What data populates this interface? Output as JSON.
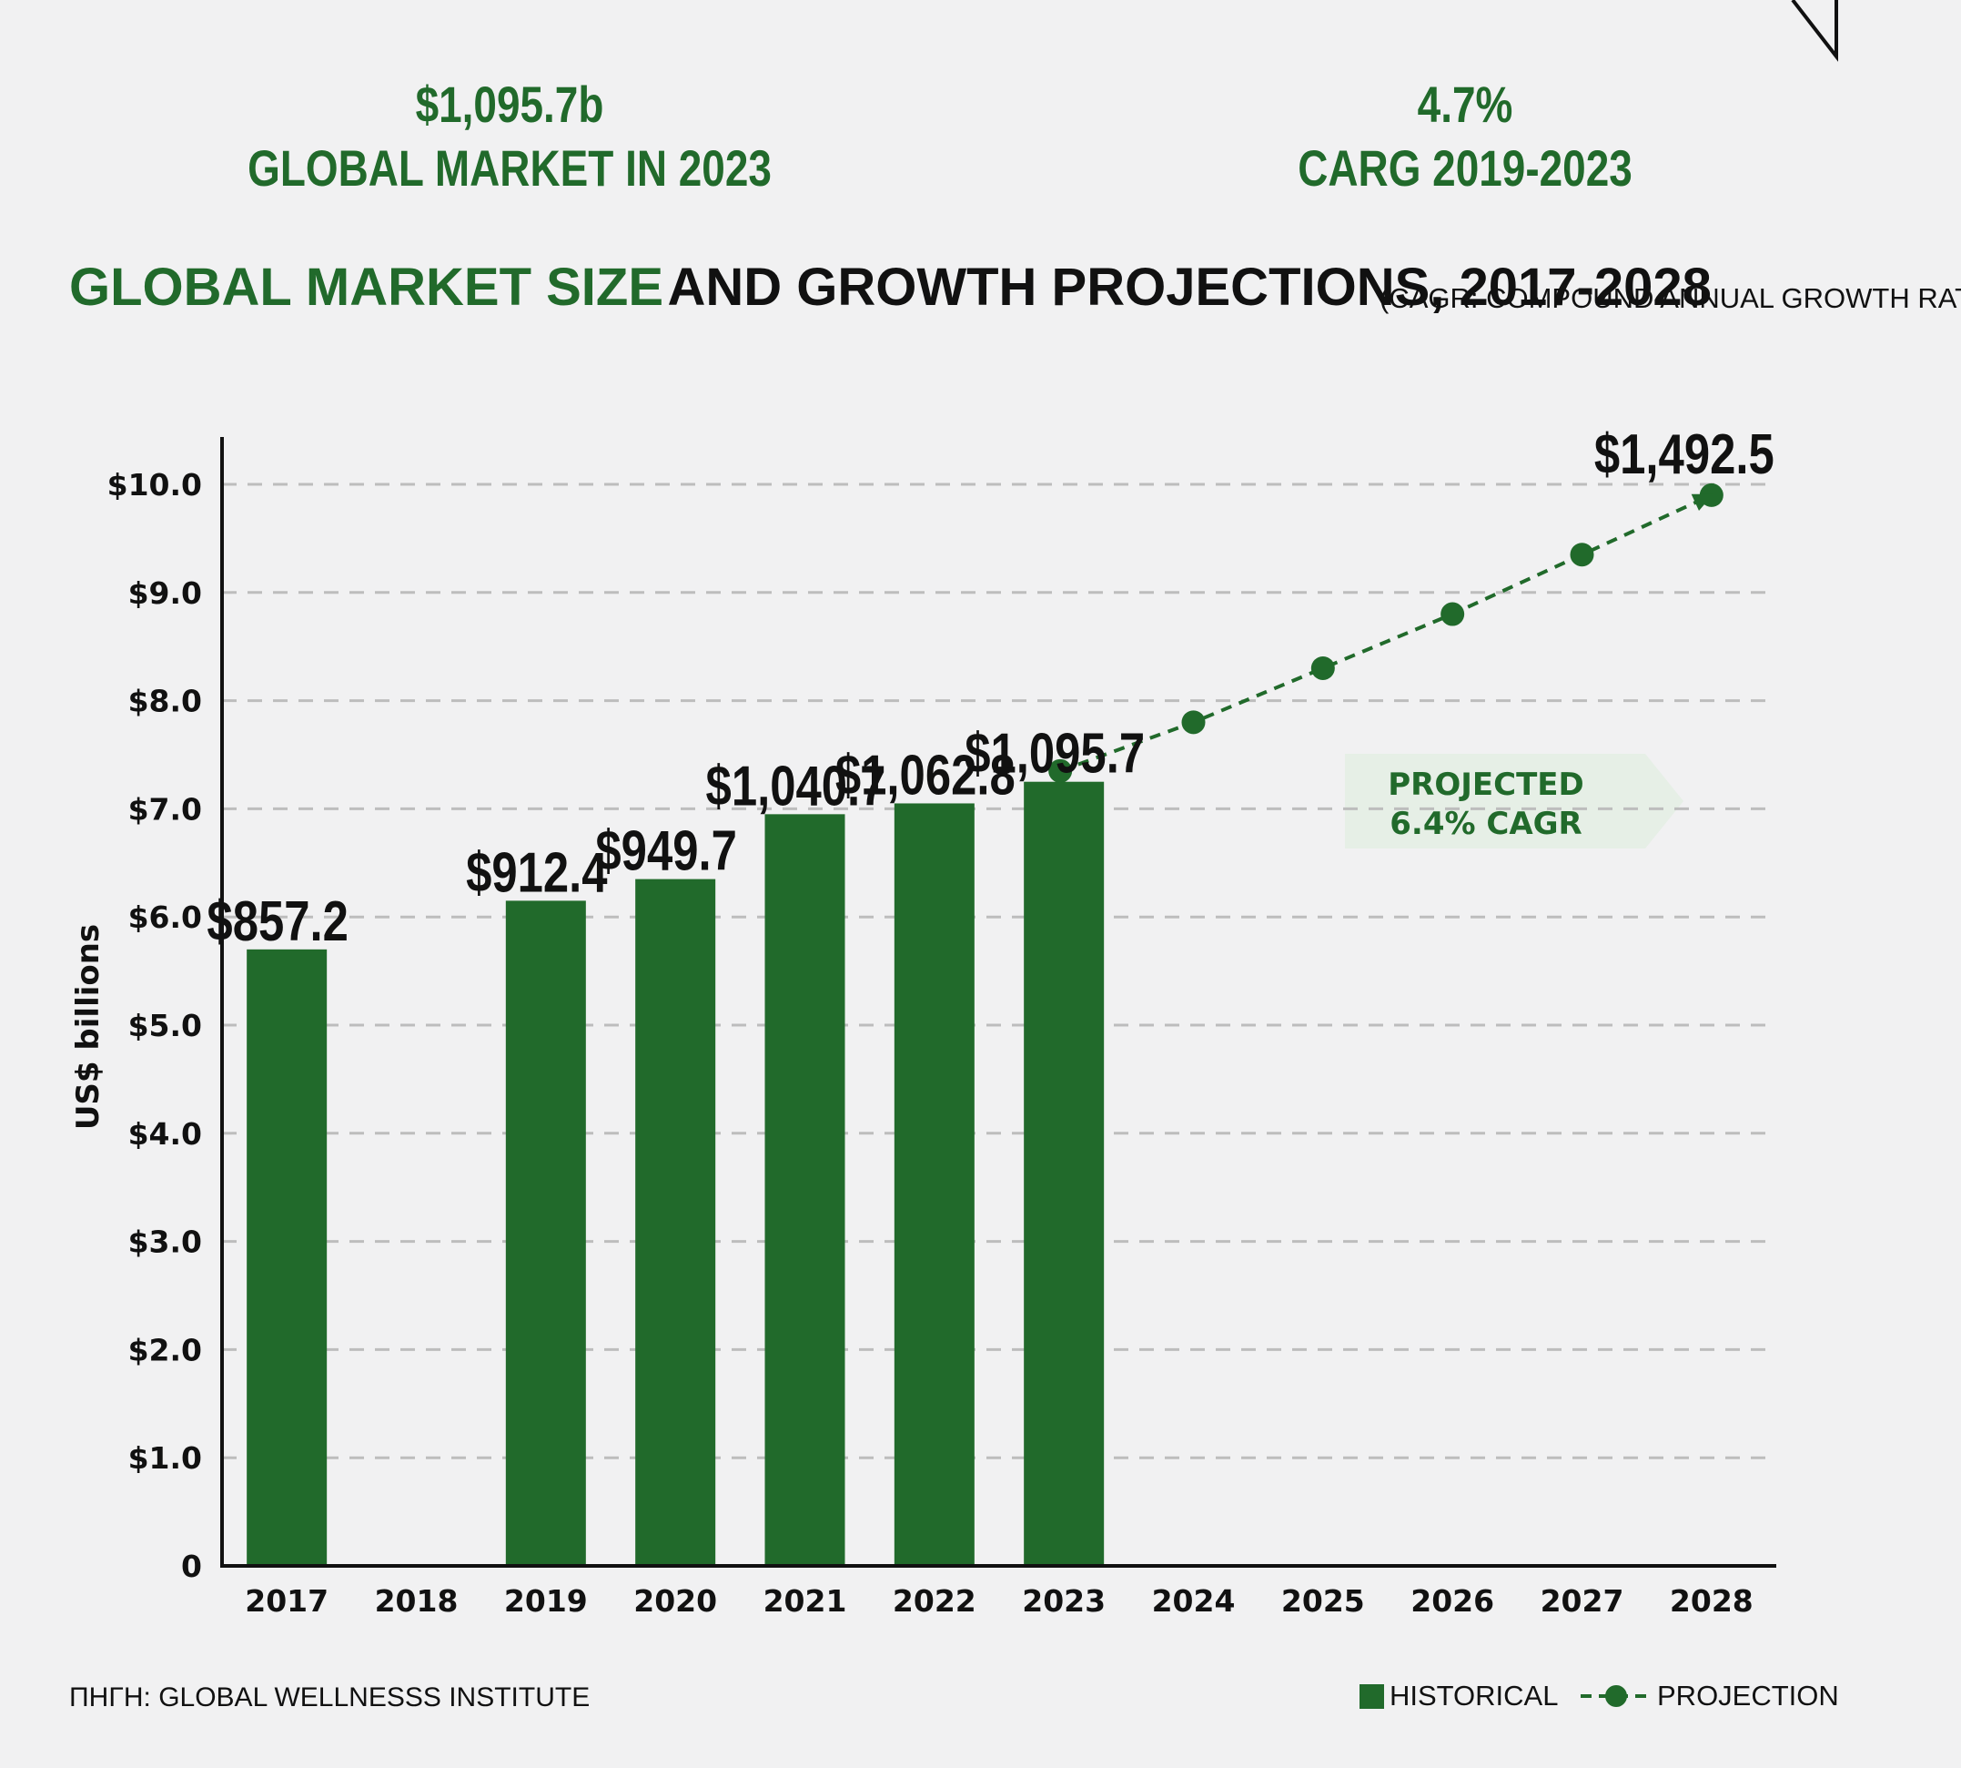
{
  "stats": [
    {
      "value": "$1,095.7b",
      "label": "GLOBAL MARKET IN 2023"
    },
    {
      "value": "4.7%",
      "label": "CARG 2019-2023"
    }
  ],
  "title": {
    "highlight": "GLOBAL MARKET SIZE",
    "rest": "AND GROWTH PROJECTIONS, 2017-2028",
    "note": "(CAGR: COMPOUND ANNUAL GROWTH RATE)"
  },
  "source": "ΠΗΓΗ: GLOBAL WELLNESSS INSTITUTE",
  "legend": {
    "historical": "HISTORICAL",
    "projection": "PROJECTION"
  },
  "colors": {
    "accent": "#216a2b",
    "text": "#111111",
    "background": "#f1f1f2",
    "annotation_bg": "#e6efe6"
  },
  "chart_data": {
    "type": "bar",
    "categories": [
      "2017",
      "2018",
      "2019",
      "2020",
      "2021",
      "2022",
      "2023",
      "2024",
      "2025",
      "2026",
      "2027",
      "2028"
    ],
    "ylabel": "US$ billions",
    "ylim": [
      0,
      10.0
    ],
    "yticks": [
      "0",
      "$1.0",
      "$2.0",
      "$3.0",
      "$4.0",
      "$5.0",
      "$6.0",
      "$7.0",
      "$8.0",
      "$9.0",
      "$10.0"
    ],
    "grid": true,
    "legend_position": "bottom-right",
    "series": [
      {
        "name": "HISTORICAL",
        "type": "bar",
        "values": [
          5.7,
          null,
          6.15,
          6.35,
          6.95,
          7.05,
          7.25,
          null,
          null,
          null,
          null,
          null
        ],
        "labels": [
          "$857.2",
          null,
          "$912.4",
          "$949.7",
          "$1,040.7",
          "$1,062.8",
          "$1,095.7",
          null,
          null,
          null,
          null,
          null
        ]
      },
      {
        "name": "PROJECTION",
        "type": "line",
        "style": "dashed",
        "values": [
          null,
          null,
          null,
          null,
          null,
          null,
          7.35,
          7.8,
          8.3,
          8.8,
          9.35,
          9.9
        ],
        "labels": [
          null,
          null,
          null,
          null,
          null,
          null,
          null,
          null,
          null,
          null,
          null,
          "$1,492.5"
        ]
      }
    ],
    "annotation": {
      "line1": "PROJECTED",
      "line2": "6.4% CAGR"
    }
  }
}
